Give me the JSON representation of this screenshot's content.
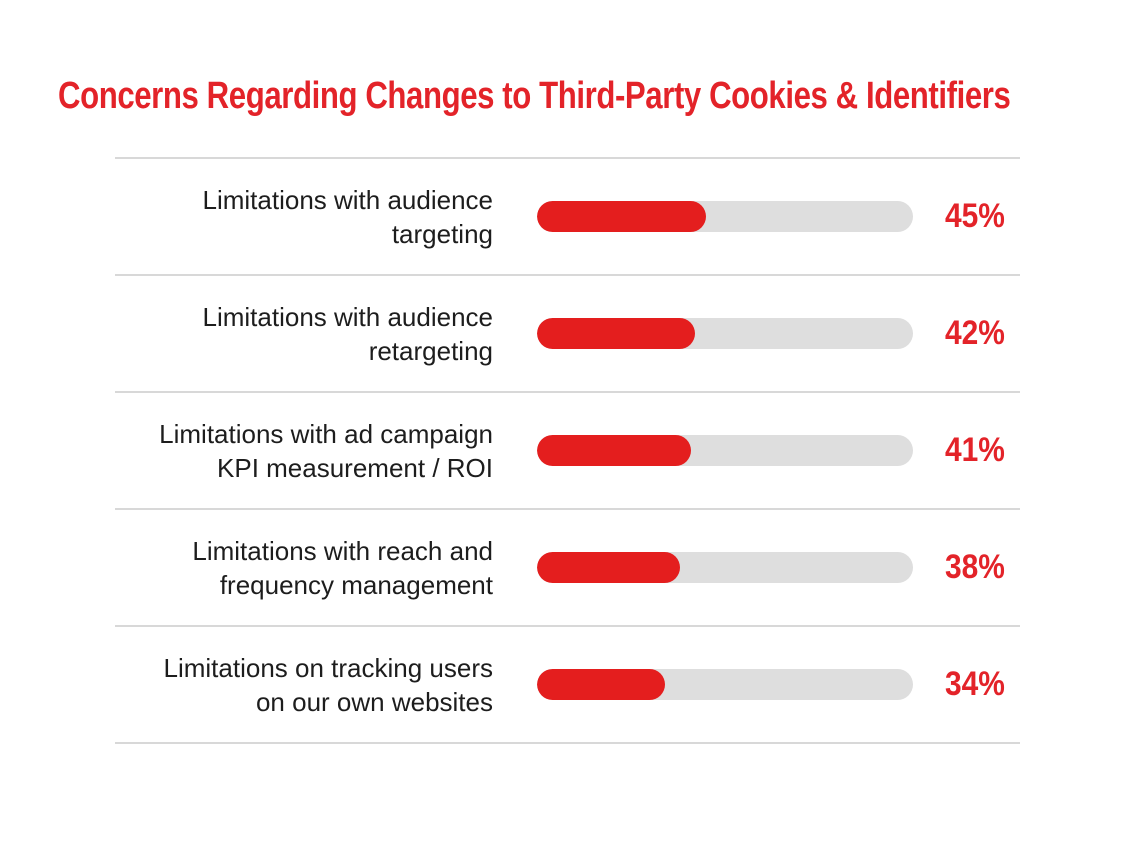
{
  "page": {
    "title": "Concerns Regarding Changes to Third-Party Cookies & Identifiers"
  },
  "colors": {
    "title_red": "#E32329",
    "bar_red": "#E41E1E",
    "track_gray": "#DEDEDE",
    "separator_gray": "#D8D8D8",
    "label_dark": "#1D1D1D",
    "background": "#FFFFFF"
  },
  "chart_data": {
    "type": "bar",
    "orientation": "horizontal",
    "title": "Concerns Regarding Changes to Third-Party Cookies & Identifiers",
    "categories": [
      "Limitations with audience targeting",
      "Limitations with audience retargeting",
      "Limitations with ad campaign KPI measurement / ROI",
      "Limitations with reach and frequency management",
      "Limitations on tracking users on our own websites"
    ],
    "values": [
      45,
      42,
      41,
      38,
      34
    ],
    "value_labels": [
      "45%",
      "42%",
      "41%",
      "38%",
      "34%"
    ],
    "unit": "%",
    "xlim": [
      0,
      100
    ],
    "grid": false,
    "legend": "none",
    "bar_color": "#E41E1E",
    "track_color": "#DEDEDE"
  },
  "rows": [
    {
      "label": "Limitations with audience\ntargeting",
      "value": 45,
      "value_label": "45%"
    },
    {
      "label": "Limitations with audience\nretargeting",
      "value": 42,
      "value_label": "42%"
    },
    {
      "label": "Limitations with ad campaign\nKPI measurement / ROI",
      "value": 41,
      "value_label": "41%"
    },
    {
      "label": "Limitations with reach and\nfrequency management",
      "value": 38,
      "value_label": "38%"
    },
    {
      "label": "Limitations on tracking users\non our own websites",
      "value": 34,
      "value_label": "34%"
    }
  ]
}
